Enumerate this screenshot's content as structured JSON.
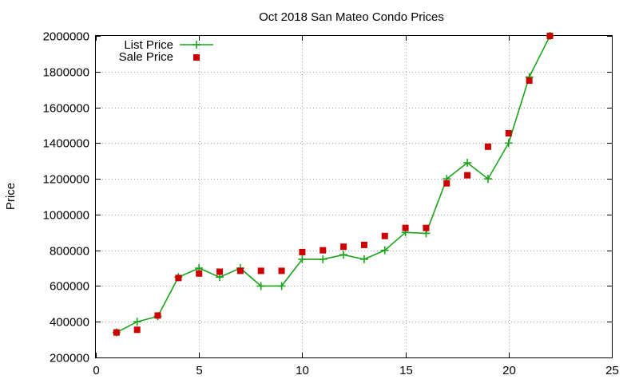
{
  "chart_data": {
    "type": "line",
    "title": "Oct 2018 San Mateo Condo Prices",
    "xlabel": "",
    "ylabel": "Price",
    "xlim": [
      0,
      25
    ],
    "ylim": [
      200000,
      2000000
    ],
    "x_ticks": [
      0,
      5,
      10,
      15,
      20,
      25
    ],
    "y_ticks": [
      200000,
      400000,
      600000,
      800000,
      1000000,
      1200000,
      1400000,
      1600000,
      1800000,
      2000000
    ],
    "grid": true,
    "legend_position": "top-left",
    "series": [
      {
        "name": "List Price",
        "style": "line-with-plus-markers",
        "color": "#1aa31a",
        "x": [
          1,
          2,
          3,
          4,
          5,
          6,
          7,
          8,
          9,
          10,
          11,
          12,
          13,
          14,
          15,
          16,
          17,
          18,
          19,
          20,
          21,
          22
        ],
        "y": [
          340000,
          400000,
          430000,
          650000,
          700000,
          650000,
          700000,
          600000,
          600000,
          750000,
          750000,
          775000,
          750000,
          800000,
          900000,
          895000,
          1200000,
          1290000,
          1200000,
          1400000,
          1770000,
          2000000
        ]
      },
      {
        "name": "Sale Price",
        "style": "square-markers",
        "color": "#cc0000",
        "x": [
          1,
          2,
          3,
          4,
          5,
          6,
          7,
          8,
          9,
          10,
          11,
          12,
          13,
          14,
          15,
          16,
          17,
          18,
          19,
          20,
          21,
          22
        ],
        "y": [
          340000,
          355000,
          435000,
          645000,
          670000,
          680000,
          685000,
          685000,
          685000,
          790000,
          800000,
          820000,
          830000,
          880000,
          925000,
          925000,
          1175000,
          1220000,
          1380000,
          1455000,
          1750000,
          2000000
        ]
      }
    ]
  }
}
